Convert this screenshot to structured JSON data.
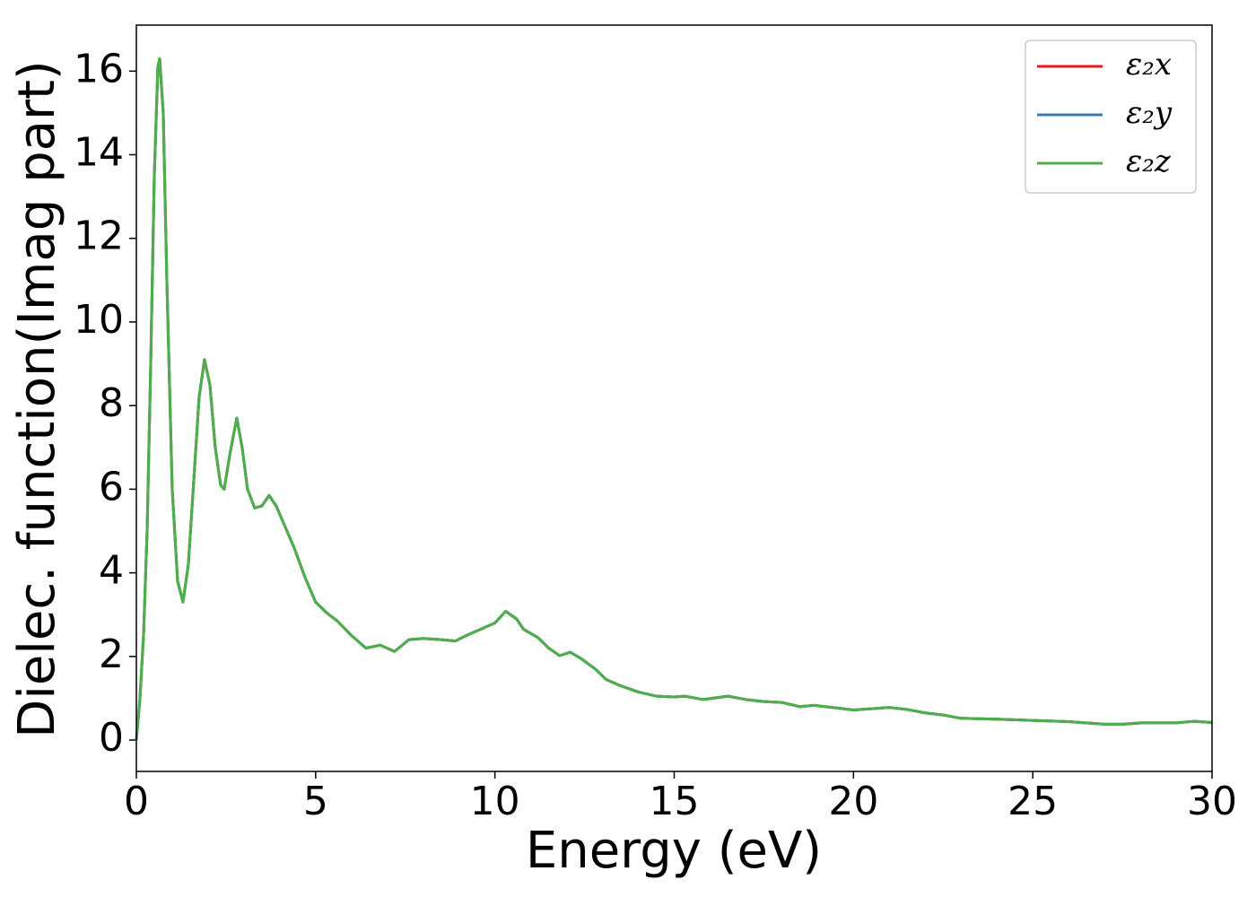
{
  "chart_data": {
    "type": "line",
    "xlabel": "Energy (eV)",
    "ylabel": "Dielec. function(Imag part)",
    "x": [
      0,
      0.1,
      0.2,
      0.3,
      0.4,
      0.5,
      0.6,
      0.65,
      0.75,
      0.85,
      1.0,
      1.15,
      1.3,
      1.45,
      1.6,
      1.75,
      1.9,
      2.05,
      2.2,
      2.35,
      2.45,
      2.6,
      2.8,
      2.95,
      3.1,
      3.3,
      3.5,
      3.7,
      3.9,
      4.1,
      4.4,
      4.7,
      5.0,
      5.3,
      5.6,
      6.0,
      6.4,
      6.8,
      7.2,
      7.6,
      8.0,
      8.5,
      8.9,
      9.2,
      9.6,
      10.0,
      10.3,
      10.6,
      10.8,
      11.2,
      11.5,
      11.8,
      12.1,
      12.4,
      12.8,
      13.1,
      13.5,
      14.0,
      14.5,
      15.0,
      15.3,
      15.8,
      16.5,
      17.0,
      17.5,
      18.0,
      18.5,
      18.9,
      19.5,
      20.0,
      20.5,
      21.0,
      21.5,
      22.0,
      22.5,
      23.0,
      24.0,
      25.0,
      26.0,
      27.0,
      27.5,
      28.0,
      29.0,
      29.5,
      30.0
    ],
    "series": [
      {
        "name": "ε₂x",
        "color": "#e41a1c",
        "values": [
          0,
          1.0,
          2.5,
          5,
          9,
          13.5,
          16.1,
          16.3,
          15,
          11,
          6,
          3.8,
          3.3,
          4.2,
          6.2,
          8.2,
          9.1,
          8.5,
          7,
          6.1,
          6.0,
          6.8,
          7.7,
          7.0,
          6.0,
          5.55,
          5.6,
          5.85,
          5.6,
          5.2,
          4.6,
          3.9,
          3.3,
          3.05,
          2.85,
          2.5,
          2.2,
          2.27,
          2.12,
          2.4,
          2.43,
          2.4,
          2.37,
          2.5,
          2.65,
          2.8,
          3.08,
          2.9,
          2.65,
          2.45,
          2.2,
          2.02,
          2.1,
          1.95,
          1.7,
          1.45,
          1.3,
          1.15,
          1.05,
          1.03,
          1.05,
          0.97,
          1.05,
          0.97,
          0.92,
          0.9,
          0.8,
          0.83,
          0.77,
          0.72,
          0.75,
          0.78,
          0.73,
          0.65,
          0.6,
          0.52,
          0.5,
          0.47,
          0.44,
          0.38,
          0.38,
          0.41,
          0.41,
          0.45,
          0.42
        ]
      },
      {
        "name": "ε₂y",
        "color": "#377eb8",
        "values": [
          0,
          1.0,
          2.5,
          5,
          9,
          13.5,
          16.1,
          16.3,
          15,
          11,
          6,
          3.8,
          3.3,
          4.2,
          6.2,
          8.2,
          9.1,
          8.5,
          7,
          6.1,
          6.0,
          6.8,
          7.7,
          7.0,
          6.0,
          5.55,
          5.6,
          5.85,
          5.6,
          5.2,
          4.6,
          3.9,
          3.3,
          3.05,
          2.85,
          2.5,
          2.2,
          2.27,
          2.12,
          2.4,
          2.43,
          2.4,
          2.37,
          2.5,
          2.65,
          2.8,
          3.08,
          2.9,
          2.65,
          2.45,
          2.2,
          2.02,
          2.1,
          1.95,
          1.7,
          1.45,
          1.3,
          1.15,
          1.05,
          1.03,
          1.05,
          0.97,
          1.05,
          0.97,
          0.92,
          0.9,
          0.8,
          0.83,
          0.77,
          0.72,
          0.75,
          0.78,
          0.73,
          0.65,
          0.6,
          0.52,
          0.5,
          0.47,
          0.44,
          0.38,
          0.38,
          0.41,
          0.41,
          0.45,
          0.42
        ]
      },
      {
        "name": "ε₂z",
        "color": "#4daf4a",
        "values": [
          0,
          1.0,
          2.5,
          5,
          9,
          13.5,
          16.1,
          16.3,
          15,
          11,
          6,
          3.8,
          3.3,
          4.2,
          6.2,
          8.2,
          9.1,
          8.5,
          7,
          6.1,
          6.0,
          6.8,
          7.7,
          7.0,
          6.0,
          5.55,
          5.6,
          5.85,
          5.6,
          5.2,
          4.6,
          3.9,
          3.3,
          3.05,
          2.85,
          2.5,
          2.2,
          2.27,
          2.12,
          2.4,
          2.43,
          2.4,
          2.37,
          2.5,
          2.65,
          2.8,
          3.08,
          2.9,
          2.65,
          2.45,
          2.2,
          2.02,
          2.1,
          1.95,
          1.7,
          1.45,
          1.3,
          1.15,
          1.05,
          1.03,
          1.05,
          0.97,
          1.05,
          0.97,
          0.92,
          0.9,
          0.8,
          0.83,
          0.77,
          0.72,
          0.75,
          0.78,
          0.73,
          0.65,
          0.6,
          0.52,
          0.5,
          0.47,
          0.44,
          0.38,
          0.38,
          0.41,
          0.41,
          0.45,
          0.42
        ]
      }
    ],
    "xlim": [
      0,
      30
    ],
    "xticks": [
      0,
      5,
      10,
      15,
      20,
      25,
      30
    ],
    "ylim": [
      -0.75,
      17.1
    ],
    "yticks": [
      0,
      2,
      4,
      6,
      8,
      10,
      12,
      14,
      16
    ],
    "legend": "upper right",
    "grid": false
  }
}
